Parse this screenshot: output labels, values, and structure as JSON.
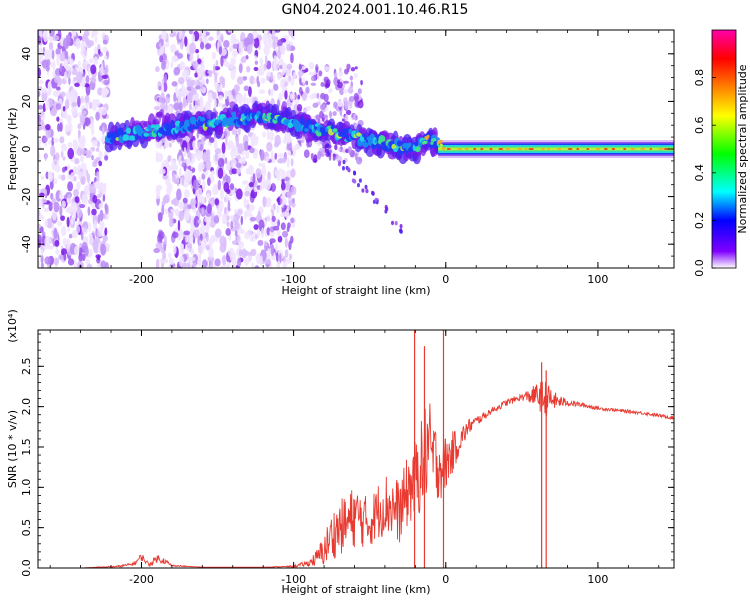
{
  "title": "GN04.2024.001.10.46.R15",
  "chart_data": [
    {
      "type": "heatmap",
      "xlabel": "Height of straight line (km)",
      "ylabel": "Frequency (Hz)",
      "xlim": [
        -268,
        150
      ],
      "ylim": [
        -50,
        50
      ],
      "xticks": [
        -200,
        -100,
        0,
        100
      ],
      "xtick_labels": [
        "-200",
        "-100",
        "0",
        "100"
      ],
      "yticks": [
        -40,
        -20,
        0,
        20,
        40
      ],
      "ytick_labels": [
        "-40",
        "-20",
        "0",
        "20",
        "40"
      ],
      "colorbar": {
        "label": "Normalized spectral amplitude",
        "range": [
          0,
          1
        ],
        "ticks": [
          0.0,
          0.2,
          0.4,
          0.6,
          0.8
        ],
        "tick_labels": [
          "0.0",
          "0.2",
          "0.4",
          "0.6",
          "0.8"
        ],
        "colors": [
          "#ffffff",
          "#8000ff",
          "#0000ff",
          "#00ffff",
          "#00ff00",
          "#ffff00",
          "#ff8000",
          "#ff0000",
          "#ff00aa"
        ]
      },
      "features": {
        "noise_regions_x": [
          [
            -268,
            -222
          ],
          [
            -190,
            -100
          ]
        ],
        "track": [
          [
            -222,
            5
          ],
          [
            -190,
            8
          ],
          [
            -120,
            14
          ],
          [
            -80,
            8
          ],
          [
            -40,
            2
          ],
          [
            -20,
            0
          ],
          [
            -12,
            4
          ],
          [
            0,
            1
          ],
          [
            150,
            0
          ]
        ],
        "steady_band_x": [
          0,
          150
        ],
        "steady_band_freq": 0
      }
    },
    {
      "type": "line",
      "xlabel": "Height of straight line (km)",
      "ylabel": "SNR (10 * v/v)",
      "y_multiplier": "(x10⁴)",
      "xlim": [
        -268,
        150
      ],
      "ylim": [
        0,
        2.95
      ],
      "xticks": [
        -200,
        -100,
        0,
        100
      ],
      "xtick_labels": [
        "-200",
        "-100",
        "0",
        "100"
      ],
      "yticks": [
        0.0,
        0.5,
        1.0,
        1.5,
        2.0,
        2.5
      ],
      "ytick_labels": [
        "0.0",
        "0.5",
        "1.0",
        "1.5",
        "2.0",
        "2.5"
      ],
      "color": "#e83a30",
      "series": [
        {
          "x": [
            -268,
            -240,
            -215,
            -205,
            -200,
            -195,
            -190,
            -185,
            -180,
            -160,
            -140,
            -120,
            -100,
            -90,
            -85,
            -80,
            -75,
            -70,
            -65,
            -60,
            -55,
            -50,
            -45,
            -40,
            -35,
            -30,
            -25,
            -20,
            -15,
            -12,
            -10,
            -8,
            -5,
            -2,
            0,
            5,
            10,
            15,
            20,
            25,
            30,
            40,
            50,
            60,
            65,
            70,
            80,
            90,
            100,
            110,
            120,
            130,
            140,
            150
          ],
          "y": [
            0.0,
            0.0,
            0.02,
            0.05,
            0.14,
            0.04,
            0.12,
            0.09,
            0.03,
            0.01,
            0.01,
            0.01,
            0.02,
            0.06,
            0.12,
            0.22,
            0.4,
            0.5,
            0.55,
            0.65,
            0.6,
            0.55,
            0.7,
            0.8,
            0.75,
            0.7,
            0.95,
            1.1,
            1.3,
            1.55,
            1.4,
            1.35,
            1.3,
            1.25,
            1.3,
            1.45,
            1.6,
            1.75,
            1.82,
            1.88,
            1.95,
            2.05,
            2.12,
            2.14,
            2.1,
            2.08,
            2.05,
            2.02,
            1.98,
            1.96,
            1.94,
            1.92,
            1.89,
            1.86
          ],
          "noise_amplitude": [
            0.0,
            0.0,
            0.01,
            0.02,
            0.05,
            0.02,
            0.05,
            0.04,
            0.01,
            0.0,
            0.0,
            0.0,
            0.01,
            0.04,
            0.1,
            0.2,
            0.3,
            0.35,
            0.35,
            0.4,
            0.35,
            0.3,
            0.35,
            0.4,
            0.4,
            0.4,
            0.45,
            0.5,
            0.6,
            0.7,
            0.6,
            0.5,
            0.45,
            0.4,
            0.35,
            0.25,
            0.15,
            0.1,
            0.06,
            0.05,
            0.04,
            0.04,
            0.04,
            0.15,
            0.25,
            0.12,
            0.04,
            0.03,
            0.02,
            0.02,
            0.02,
            0.02,
            0.02,
            0.02
          ]
        }
      ],
      "spikes": [
        {
          "x": -20.5,
          "y": 2.95
        },
        {
          "x": -14,
          "y": 2.75
        },
        {
          "x": -1.5,
          "y": 2.95
        },
        {
          "x": 63,
          "y": 2.55
        },
        {
          "x": 66,
          "y": 2.45
        }
      ]
    }
  ]
}
